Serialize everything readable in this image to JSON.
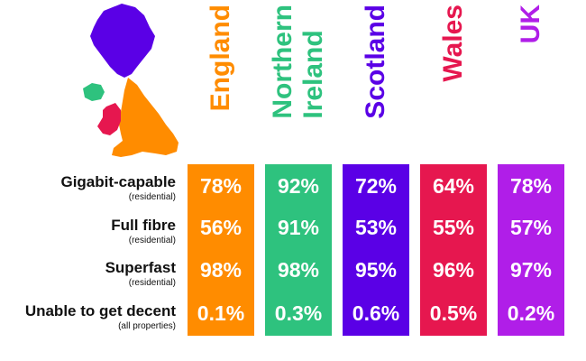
{
  "colors": {
    "england": "#FF8C00",
    "northern_ireland": "#2EC27E",
    "scotland": "#5A00E6",
    "wales": "#E6174F",
    "uk": "#B01EE8"
  },
  "columns": [
    {
      "key": "england",
      "label": "England",
      "color": "#FF8C00"
    },
    {
      "key": "northern_ireland",
      "label": "Northern Ireland",
      "color": "#2EC27E"
    },
    {
      "key": "scotland",
      "label": "Scotland",
      "color": "#5A00E6"
    },
    {
      "key": "wales",
      "label": "Wales",
      "color": "#E6174F"
    },
    {
      "key": "uk",
      "label": "UK",
      "color": "#B01EE8"
    }
  ],
  "header_lines": {
    "england": [
      "England"
    ],
    "northern_ireland": [
      "Northern",
      "Ireland"
    ],
    "scotland": [
      "Scotland"
    ],
    "wales": [
      "Wales"
    ],
    "uk": [
      "UK"
    ]
  },
  "rows": [
    {
      "label": "Gigabit-capable",
      "sub": "(residential)",
      "values": [
        "78%",
        "92%",
        "72%",
        "64%",
        "78%"
      ]
    },
    {
      "label": "Full fibre",
      "sub": "(residential)",
      "values": [
        "56%",
        "91%",
        "53%",
        "55%",
        "57%"
      ]
    },
    {
      "label": "Superfast",
      "sub": "(residential)",
      "values": [
        "98%",
        "98%",
        "95%",
        "96%",
        "97%"
      ]
    },
    {
      "label": "Unable to get decent",
      "sub": "(all properties)",
      "values": [
        "0.1%",
        "0.3%",
        "0.6%",
        "0.5%",
        "0.2%"
      ]
    }
  ]
}
